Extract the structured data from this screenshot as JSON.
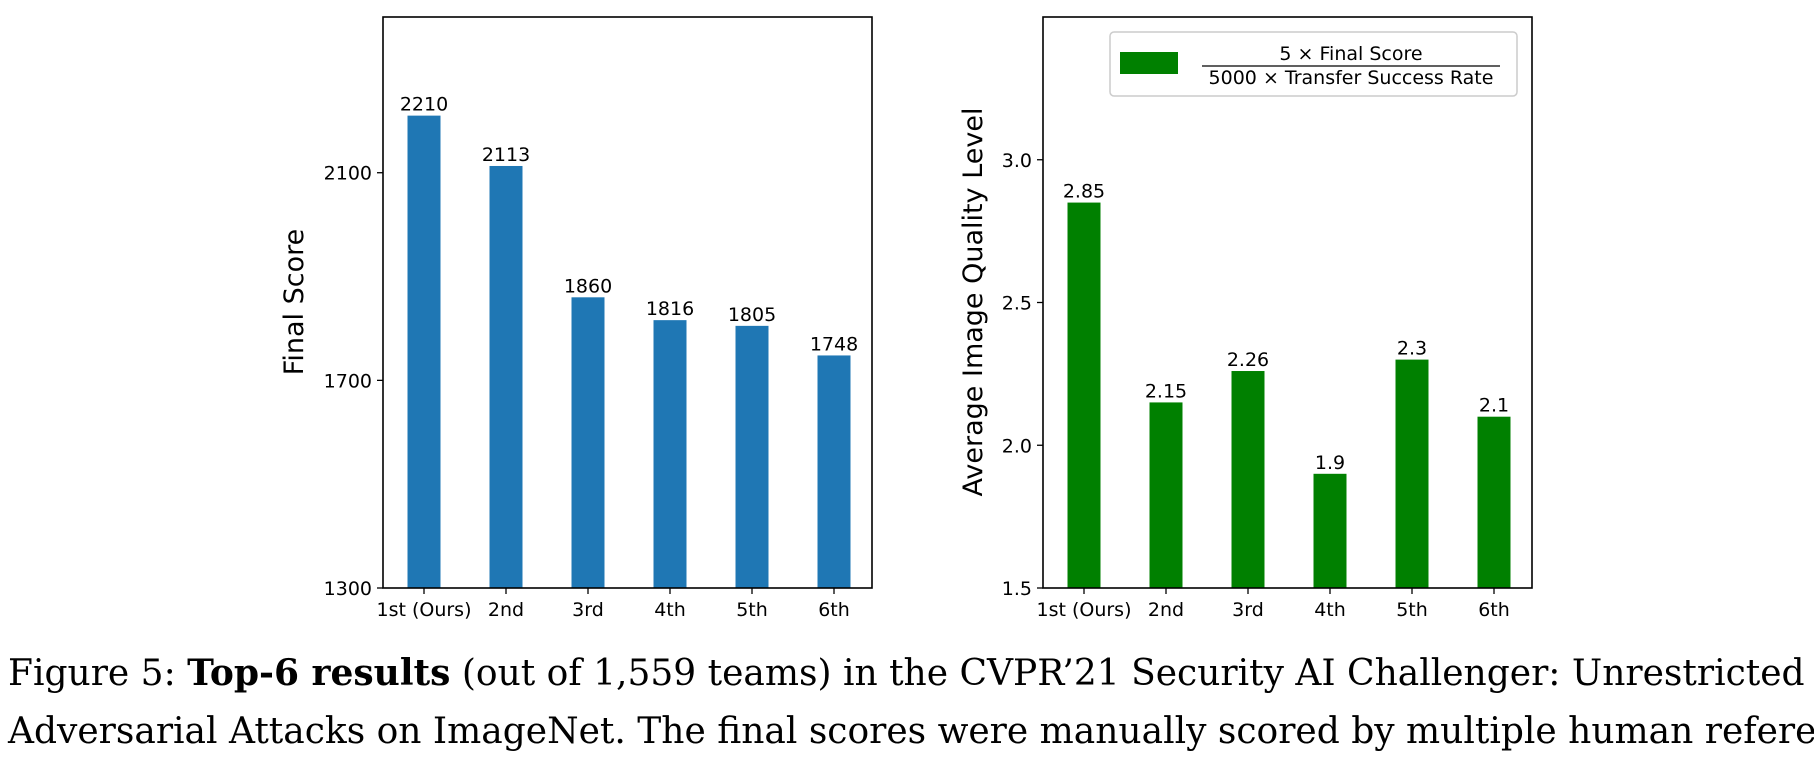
{
  "chart_data": [
    {
      "type": "bar",
      "categories": [
        "1st (Ours)",
        "2nd",
        "3rd",
        "4th",
        "5th",
        "6th"
      ],
      "values": [
        2210,
        2113,
        1860,
        1816,
        1805,
        1748
      ],
      "value_labels": [
        "2210",
        "2113",
        "1860",
        "1816",
        "1805",
        "1748"
      ],
      "title": "",
      "xlabel": "",
      "ylabel": "Final Score",
      "ylim": [
        1300,
        2400
      ],
      "yticks": [
        1300,
        1700,
        2100
      ],
      "color": "#1f77b4",
      "grid": false,
      "legend": null
    },
    {
      "type": "bar",
      "categories": [
        "1st (Ours)",
        "2nd",
        "3rd",
        "4th",
        "5th",
        "6th"
      ],
      "values": [
        2.85,
        2.15,
        2.26,
        1.9,
        2.3,
        2.1
      ],
      "value_labels": [
        "2.85",
        "2.15",
        "2.26",
        "1.9",
        "2.3",
        "2.1"
      ],
      "title": "",
      "xlabel": "",
      "ylabel": "Average Image Quality Level",
      "ylim": [
        1.5,
        3.5
      ],
      "yticks": [
        1.5,
        2.0,
        2.5,
        3.0
      ],
      "ytick_labels": [
        "1.5",
        "2.0",
        "2.5",
        "3.0"
      ],
      "color": "#008000",
      "grid": false,
      "legend": {
        "placement": "top-right",
        "numerator": "5 × Final Score",
        "denominator": "5000 × Transfer Success Rate"
      }
    }
  ],
  "caption": {
    "figure_label": "Figure 5: ",
    "bold": "Top-6 results",
    "rest_line1": " (out of 1,559 teams) in the CVPR’21 Security AI Challenger: Unrestricted",
    "line2": "Adversarial Attacks on ImageNet. The final scores were manually scored by multiple human referees."
  }
}
